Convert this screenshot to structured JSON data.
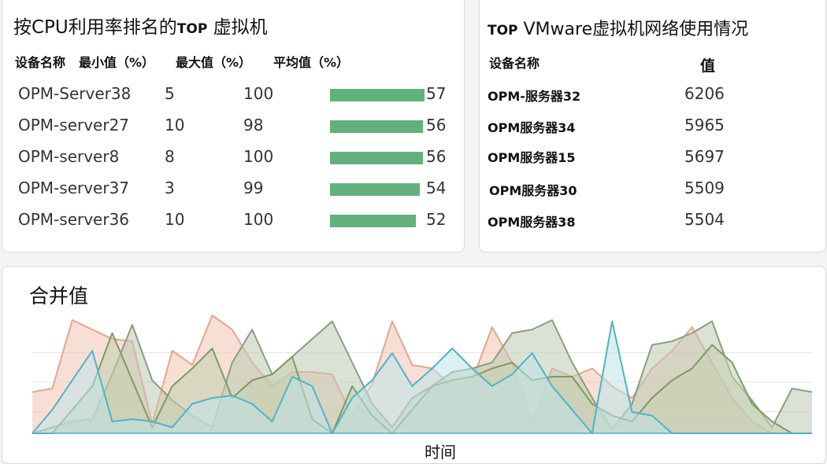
{
  "cpu_widget": {
    "title_prefix": "按CPU利用率排名的",
    "title_top": "TOP",
    "title_suffix": " 虚拟机",
    "headers": {
      "device_name": "设备名称",
      "min": "最小值（%）",
      "max": "最大值（%）",
      "avg": "平均值（%）"
    },
    "rows": [
      {
        "name": "OPM-Server38",
        "min": "5",
        "max": "100",
        "avg": "57",
        "avg_value": 57
      },
      {
        "name": "OPM-server27",
        "min": "10",
        "max": "98",
        "avg": "56",
        "avg_value": 56
      },
      {
        "name": "OPM-server8",
        "min": "8",
        "max": "100",
        "avg": "56",
        "avg_value": 56
      },
      {
        "name": "OPM-server37",
        "min": "3",
        "max": "99",
        "avg": "54",
        "avg_value": 54
      },
      {
        "name": "OPM-server36",
        "min": "10",
        "max": "100",
        "avg": "52",
        "avg_value": 52
      }
    ],
    "bar_color": "#62b07c"
  },
  "net_widget": {
    "title_top": "TOP",
    "title_rest": " VMware虚拟机网络使用情况",
    "headers": {
      "device_name": "设备名称",
      "value": "值"
    },
    "rows": [
      {
        "name": "OPM-服务器32",
        "value": "6206"
      },
      {
        "name": "OPM服务器34",
        "value": "5965"
      },
      {
        "name": "OPM服务器15",
        "value": "5697"
      },
      {
        "name": "OPM服务器30",
        "value": "5509"
      },
      {
        "name": "OPM服务器38",
        "value": "5504"
      }
    ]
  },
  "combined_widget": {
    "title": "合并值",
    "xlabel": "时间"
  },
  "chart_data": {
    "type": "area",
    "title": "合并值",
    "xlabel": "时间",
    "ylabel": "",
    "ylim": [
      0,
      100
    ],
    "grid": true,
    "x": [
      0,
      1,
      2,
      3,
      4,
      5,
      6,
      7,
      8,
      9,
      10,
      11,
      12,
      13,
      14,
      15,
      16,
      17,
      18,
      19,
      20,
      21,
      22,
      23,
      24,
      25,
      26,
      27,
      28,
      29,
      30,
      31,
      32,
      33,
      34,
      35,
      36,
      37,
      38,
      39
    ],
    "series": [
      {
        "color": "#e8a48e",
        "fill": "#f1c4b4",
        "values": [
          35,
          38,
          96,
          88,
          80,
          78,
          8,
          70,
          58,
          100,
          88,
          60,
          40,
          52,
          52,
          50,
          15,
          42,
          95,
          58,
          55,
          40,
          45,
          90,
          60,
          8,
          55,
          48,
          55,
          40,
          30,
          55,
          70,
          90,
          60,
          30,
          10,
          0,
          0,
          0
        ]
      },
      {
        "color": "#8a9f7e",
        "fill": "#bdc8b2",
        "values": [
          0,
          5,
          10,
          12,
          50,
          92,
          45,
          28,
          15,
          5,
          60,
          88,
          50,
          65,
          80,
          95,
          60,
          25,
          5,
          30,
          40,
          52,
          55,
          60,
          85,
          88,
          96,
          60,
          30,
          3,
          25,
          75,
          78,
          85,
          95,
          48,
          28,
          5,
          38,
          35
        ]
      },
      {
        "color": "#7d9b63",
        "fill": "#c2d0ae",
        "values": [
          0,
          0,
          20,
          40,
          85,
          45,
          5,
          40,
          55,
          72,
          30,
          45,
          50,
          65,
          12,
          0,
          40,
          15,
          0,
          20,
          40,
          45,
          48,
          55,
          60,
          45,
          48,
          48,
          25,
          15,
          10,
          30,
          45,
          55,
          75,
          60,
          25,
          10,
          0,
          0
        ]
      },
      {
        "color": "#4fb3c8",
        "fill": "#bfe3ea",
        "values": [
          0,
          20,
          45,
          70,
          10,
          12,
          10,
          5,
          25,
          30,
          32,
          25,
          10,
          48,
          40,
          0,
          30,
          45,
          68,
          40,
          55,
          72,
          55,
          40,
          50,
          68,
          40,
          20,
          0,
          95,
          18,
          15,
          0,
          0,
          0,
          0,
          0,
          0,
          0,
          0
        ]
      }
    ]
  }
}
